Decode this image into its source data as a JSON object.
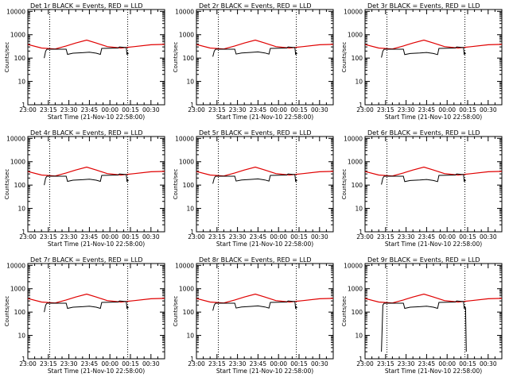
{
  "figure": {
    "xlabel": "Start Time (21-Nov-10 22:58:00)",
    "ylabel": "Counts/sec"
  },
  "chart_data": {
    "type": "line",
    "scale": "log-y",
    "grid": false,
    "axis_color": "#000000",
    "xticks": [
      "23:00",
      "23:15",
      "23:30",
      "23:45",
      "00:00",
      "00:15",
      "00:30"
    ],
    "xtick_minutes": [
      0,
      15,
      30,
      45,
      60,
      75,
      90
    ],
    "xlim_minutes": [
      0,
      100
    ],
    "yticks": [
      "1",
      "10",
      "100",
      "1000",
      "10000"
    ],
    "ylim": [
      1,
      12000
    ],
    "dotted_vlines_minutes": [
      16,
      73
    ],
    "panels": [
      {
        "title": "Det 1r BLACK = Events, RED = LLD",
        "events_dip_level": 170,
        "events_min": 100
      },
      {
        "title": "Det 2r BLACK = Events, RED = LLD",
        "events_dip_level": 175,
        "events_min": 115
      },
      {
        "title": "Det 3r BLACK = Events, RED = LLD",
        "events_dip_level": 165,
        "events_min": 105
      },
      {
        "title": "Det 4r BLACK = Events, RED = LLD",
        "events_dip_level": 170,
        "events_min": 100
      },
      {
        "title": "Det 5r BLACK = Events, RED = LLD",
        "events_dip_level": 175,
        "events_min": 115
      },
      {
        "title": "Det 6r BLACK = Events, RED = LLD",
        "events_dip_level": 165,
        "events_min": 105
      },
      {
        "title": "Det 7r BLACK = Events, RED = LLD",
        "events_dip_level": 170,
        "events_min": 100
      },
      {
        "title": "Det 8r BLACK = Events, RED = LLD",
        "events_dip_level": 175,
        "events_min": 115
      },
      {
        "title": "Det 9r BLACK = Events, RED = LLD",
        "events_dip_level": 170,
        "events_min": 2
      }
    ],
    "series": [
      {
        "key": "lld",
        "color": "#e00000",
        "x": [
          0,
          10,
          20,
          28,
          35,
          43,
          50,
          58,
          68,
          78,
          90,
          100
        ],
        "y": [
          380,
          270,
          245,
          330,
          440,
          590,
          440,
          310,
          270,
          310,
          370,
          385
        ]
      },
      {
        "key": "events",
        "color": "#000000",
        "x": [
          12,
          13,
          14,
          28,
          29,
          33,
          40,
          45,
          50,
          53,
          54,
          66,
          67,
          72,
          72.5,
          73,
          73.5
        ],
        "y": [
          110,
          200,
          240,
          240,
          170,
          190,
          200,
          210,
          190,
          170,
          260,
          270,
          300,
          280,
          140,
          170,
          150
        ]
      }
    ]
  }
}
